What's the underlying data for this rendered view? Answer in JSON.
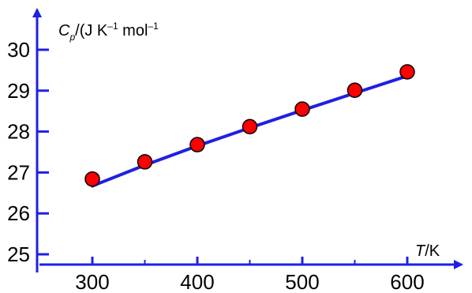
{
  "chart_data": {
    "type": "scatter",
    "title": "",
    "xlabel": {
      "symbol": "T",
      "unit": "/K"
    },
    "ylabel": {
      "symbol": "C",
      "subscript": "p",
      "unit_open": "/(J K",
      "exp1": "–1",
      "unit_mid": " mol",
      "exp2": "–1"
    },
    "xlim": [
      250,
      610
    ],
    "ylim": [
      24.8,
      30.9
    ],
    "x_ticks": [
      300,
      400,
      500,
      600
    ],
    "x_tick_labels": [
      "300",
      "400",
      "500",
      "600"
    ],
    "x_minor_ticks": [
      350,
      450,
      550
    ],
    "y_ticks": [
      25,
      26,
      27,
      28,
      29,
      30
    ],
    "y_tick_labels": [
      "25",
      "26",
      "27",
      "28",
      "29",
      "30"
    ],
    "grid": false,
    "series": [
      {
        "type": "scatter",
        "points": [
          {
            "x": 300,
            "y": 26.84
          },
          {
            "x": 350,
            "y": 27.26
          },
          {
            "x": 400,
            "y": 27.68
          },
          {
            "x": 450,
            "y": 28.12
          },
          {
            "x": 500,
            "y": 28.55
          },
          {
            "x": 550,
            "y": 29.01
          },
          {
            "x": 600,
            "y": 29.46
          }
        ],
        "color": "#ff0000"
      },
      {
        "type": "line",
        "x": [
          300,
          350,
          400,
          450,
          500,
          550,
          600
        ],
        "y": [
          26.67,
          27.18,
          27.65,
          28.09,
          28.52,
          28.94,
          29.36
        ],
        "color": "#2020e0"
      }
    ],
    "axis_color": "#1f1fe6"
  }
}
